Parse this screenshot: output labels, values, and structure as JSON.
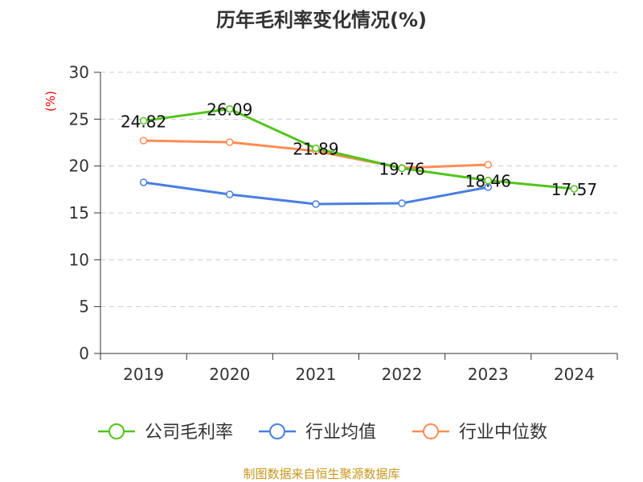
{
  "chart_data": {
    "type": "line",
    "title": "历年毛利率变化情况(%)",
    "ylabel": "(%)",
    "xlabel": "",
    "categories": [
      "2019",
      "2020",
      "2021",
      "2022",
      "2023",
      "2024"
    ],
    "ylim": [
      0,
      30
    ],
    "yticks": [
      "0",
      "5",
      "10",
      "15",
      "20",
      "25",
      "30"
    ],
    "grid": true,
    "legend_position": "bottom",
    "series": [
      {
        "name": "公司毛利率",
        "color": "#52c41a",
        "values": [
          24.82,
          26.09,
          21.89,
          19.76,
          18.46,
          17.57
        ],
        "labels": [
          "24.82",
          "26.09",
          "21.89",
          "19.76",
          "18.46",
          "17.57"
        ]
      },
      {
        "name": "行业均值",
        "color": "#4a7fe0",
        "values": [
          18.26,
          16.97,
          15.94,
          16.03,
          17.74,
          null
        ]
      },
      {
        "name": "行业中位数",
        "color": "#ff8c55",
        "values": [
          22.71,
          22.54,
          21.6,
          19.8,
          20.14,
          null
        ]
      }
    ],
    "source": "制图数据来自恒生聚源数据库"
  }
}
